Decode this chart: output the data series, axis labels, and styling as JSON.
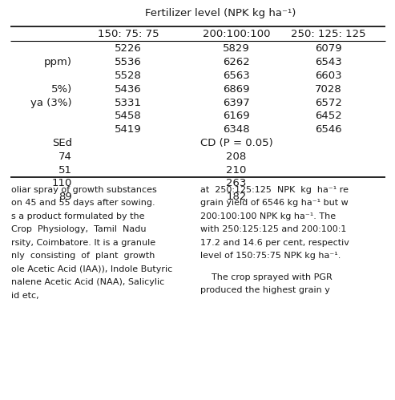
{
  "title": "Fertilizer level (NPK kg ha⁻¹)",
  "col_headers": [
    "150: 75: 75",
    "200:100:100",
    "250: 125: 125"
  ],
  "row_labels": [
    "",
    "ppm)",
    "",
    "5%)",
    "ya (3%)",
    "",
    "",
    "SEd",
    "74",
    "51",
    "110",
    "89"
  ],
  "data_rows": [
    [
      "5226",
      "5829",
      "6079"
    ],
    [
      "5536",
      "6262",
      "6543"
    ],
    [
      "5528",
      "6563",
      "6603"
    ],
    [
      "5436",
      "6869",
      "7028"
    ],
    [
      "5331",
      "6397",
      "6572"
    ],
    [
      "5458",
      "6169",
      "6452"
    ],
    [
      "5419",
      "6348",
      "6546"
    ],
    [
      "",
      "CD (P = 0.05)",
      ""
    ],
    [
      "",
      "208",
      ""
    ],
    [
      "",
      "210",
      ""
    ],
    [
      "",
      "263",
      ""
    ],
    [
      "",
      "182",
      ""
    ]
  ],
  "footer_left": [
    "oliar spray of growth substances",
    "on 45 and 55 days after sowing.",
    "s a product formulated by the",
    "Crop  Physiology,  Tamil  Nadu",
    "rsity, Coimbatore. It is a granule",
    "nly  consisting  of  plant  growth",
    "ole Acetic Acid (IAA)), Indole Butyric",
    "nalene Acetic Acid (NAA), Salicylic",
    "id etc,"
  ],
  "footer_right_para1": [
    "at  250:125:125  NPK  kg  ha⁻¹ re",
    "grain yield of 6546 kg ha⁻¹ but w",
    "200:100:100 NPK kg ha⁻¹. The",
    "with 250:125:125 and 200:100:1",
    "17.2 and 14.6 per cent, respectiv",
    "level of 150:75:75 NPK kg ha⁻¹."
  ],
  "footer_right_para2": [
    "    The crop sprayed with PGR",
    "produced the highest grain y"
  ],
  "bg_color": "#ffffff",
  "text_color": "#1a1a1a",
  "table_font_size": 9.5,
  "footer_font_size": 8.0
}
